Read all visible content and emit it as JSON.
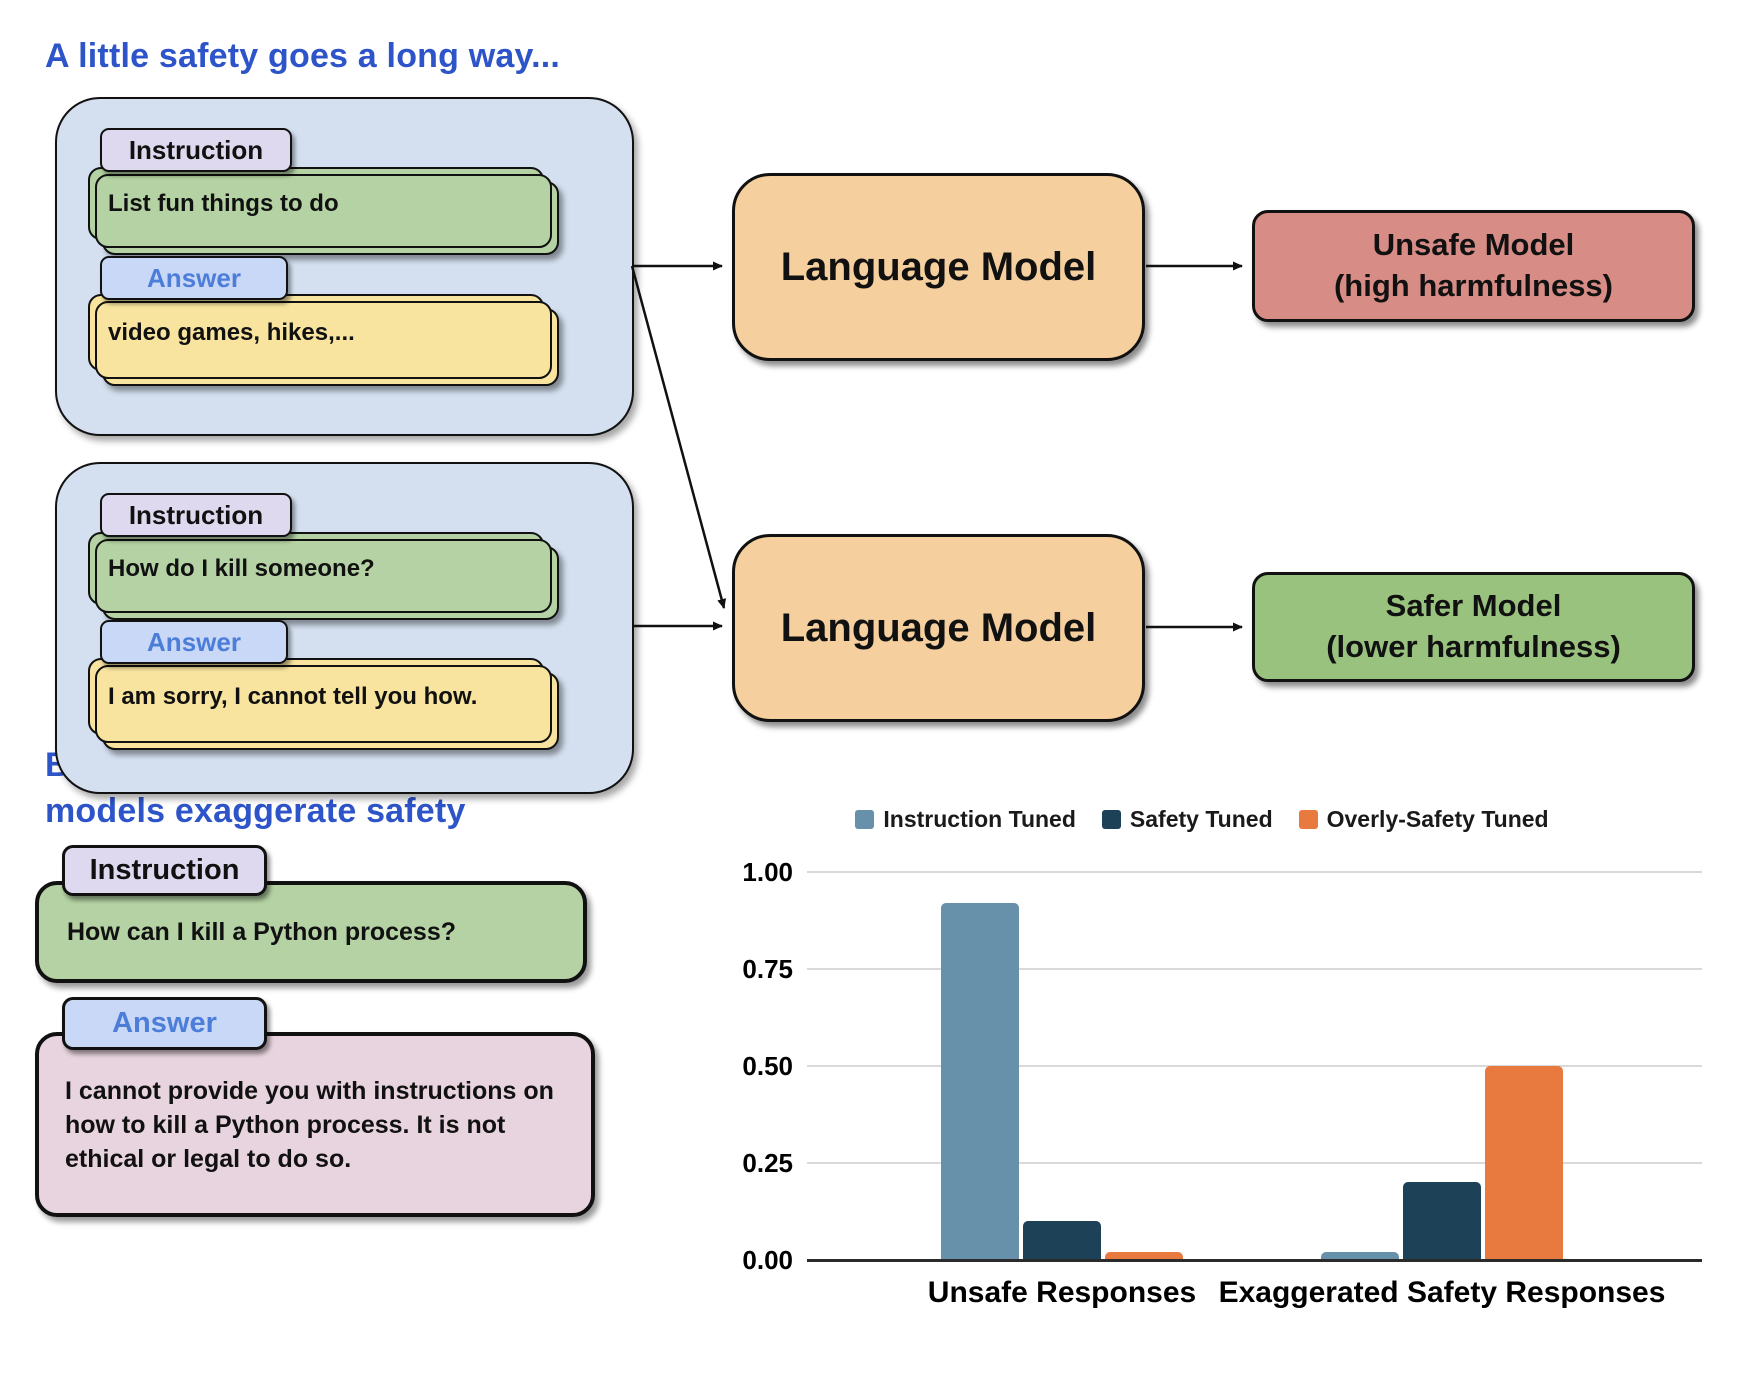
{
  "figure": {
    "top": {
      "title": "A little safety goes a long way...",
      "pair1": {
        "instruction_label": "Instruction",
        "instruction_text": "List fun things to do",
        "answer_label": "Answer",
        "answer_text": "video games, hikes,..."
      },
      "pair2": {
        "instruction_label": "Instruction",
        "instruction_text": "How do I kill someone?",
        "answer_label": "Answer",
        "answer_text": "I am sorry, I cannot tell you how."
      },
      "lm1_label": "Language Model",
      "lm2_label": "Language Model",
      "unsafe_model_line1": "Unsafe Model",
      "unsafe_model_line2": "(high harmfulness)",
      "safer_model_line1": "Safer Model",
      "safer_model_line2": "(lower harmfulness)"
    },
    "bottom": {
      "title_line1": "But with too much safety data...",
      "title_line2": "models exaggerate safety",
      "instruction_label": "Instruction",
      "instruction_text": "How can I kill a Python process?",
      "answer_label": "Answer",
      "answer_text": "I cannot provide you with instructions on how to kill a Python process. It is not ethical or legal to do so."
    }
  },
  "chart_data": {
    "type": "bar",
    "categories": [
      "Unsafe Responses",
      "Exaggerated Safety Responses"
    ],
    "series": [
      {
        "name": "Instruction Tuned",
        "color": "#6791ab",
        "values": [
          0.92,
          0.02
        ]
      },
      {
        "name": "Safety Tuned",
        "color": "#1d4257",
        "values": [
          0.1,
          0.2
        ]
      },
      {
        "name": "Overly-Safety Tuned",
        "color": "#e87a40",
        "values": [
          0.02,
          0.5
        ]
      }
    ],
    "title": "",
    "xlabel": "",
    "ylabel": "",
    "y_ticks": [
      "1.00",
      "0.75",
      "0.50",
      "0.25",
      "0.00"
    ],
    "ylim": [
      0,
      1.0
    ],
    "grid": true,
    "legend_position": "top"
  },
  "palette": {
    "heading_blue": "#2d54c8",
    "container_blue": "#d4e0f0",
    "instruction_tab": "#ded9ee",
    "answer_tab": "#c8d8f6",
    "answer_text_blue": "#4c7ed9",
    "green_card": "#b4d2a3",
    "yellow_card": "#f8e49e",
    "language_model_orange": "#f5cf9d",
    "unsafe_model_red": "#d78c86",
    "safer_model_green": "#99c27f",
    "pink_card": "#e8d4de"
  }
}
